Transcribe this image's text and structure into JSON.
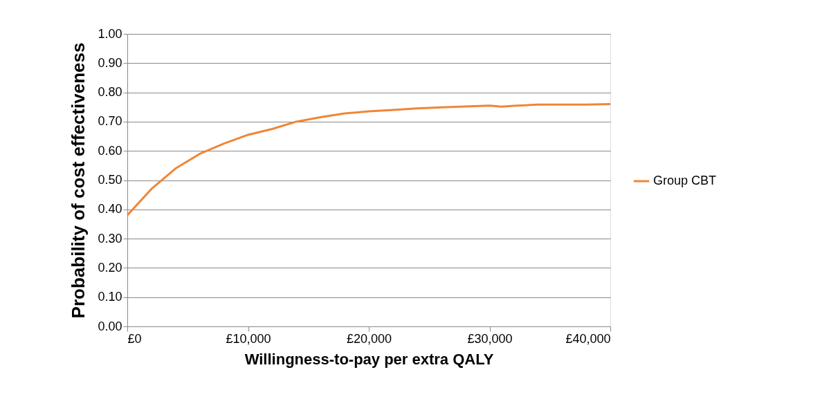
{
  "chart_data": {
    "type": "line",
    "xlabel": "Willingness-to-pay per extra QALY",
    "ylabel": "Probability of cost effectiveness",
    "x": [
      0,
      2000,
      4000,
      5000,
      6000,
      8000,
      10000,
      12000,
      14000,
      16000,
      18000,
      20000,
      22000,
      24000,
      26000,
      28000,
      30000,
      31000,
      32000,
      34000,
      36000,
      38000,
      40000
    ],
    "series": [
      {
        "name": "Group CBT",
        "color": "#f08536",
        "values": [
          0.38,
          0.47,
          0.54,
          0.565,
          0.59,
          0.625,
          0.655,
          0.675,
          0.7,
          0.715,
          0.728,
          0.735,
          0.74,
          0.745,
          0.749,
          0.752,
          0.755,
          0.751,
          0.754,
          0.758,
          0.758,
          0.758,
          0.76
        ]
      }
    ],
    "xlim": [
      0,
      40000
    ],
    "ylim": [
      0,
      1
    ],
    "xticks": [
      {
        "value": 0,
        "label": "£0"
      },
      {
        "value": 10000,
        "label": "£10,000"
      },
      {
        "value": 20000,
        "label": "£20,000"
      },
      {
        "value": 30000,
        "label": "£30,000"
      },
      {
        "value": 40000,
        "label": "£40,000"
      }
    ],
    "yticks": [
      {
        "value": 0,
        "label": "0.00"
      },
      {
        "value": 0.1,
        "label": "0.10"
      },
      {
        "value": 0.2,
        "label": "0.20"
      },
      {
        "value": 0.3,
        "label": "0.30"
      },
      {
        "value": 0.4,
        "label": "0.40"
      },
      {
        "value": 0.5,
        "label": "0.50"
      },
      {
        "value": 0.6,
        "label": "0.60"
      },
      {
        "value": 0.7,
        "label": "0.70"
      },
      {
        "value": 0.8,
        "label": "0.80"
      },
      {
        "value": 0.9,
        "label": "0.90"
      },
      {
        "value": 1,
        "label": "1.00"
      }
    ],
    "grid": "y",
    "legend": "right",
    "marker": "none",
    "line_style": "solid"
  }
}
